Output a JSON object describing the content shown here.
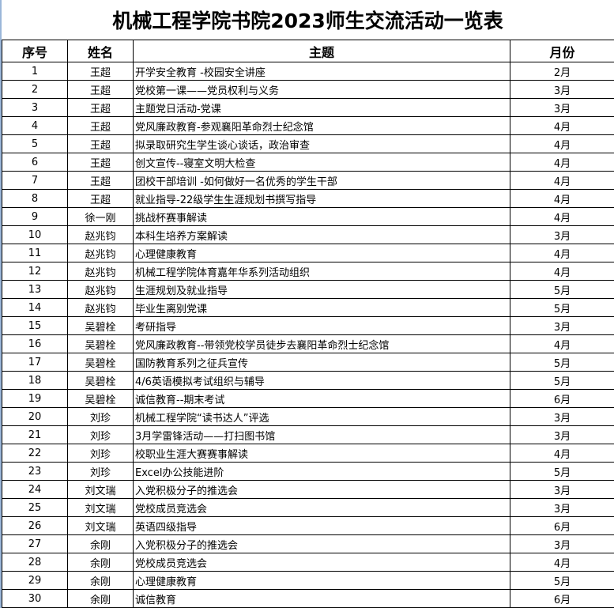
{
  "title": "机械工程学院书院2023师生交流活动一览表",
  "headers": [
    "序号",
    "姓名",
    "主题",
    "月份"
  ],
  "rows": [
    [
      "1",
      "王超",
      "开学安全教育 -校园安全讲座",
      "2月"
    ],
    [
      "2",
      "王超",
      "党校第一课——党员权利与义务",
      "3月"
    ],
    [
      "3",
      "王超",
      "主题党日活动-党课",
      "3月"
    ],
    [
      "4",
      "王超",
      "党风廉政教育-参观襄阳革命烈士纪念馆",
      "4月"
    ],
    [
      "5",
      "王超",
      "拟录取研究生学生谈心谈话，政治审查",
      "4月"
    ],
    [
      "6",
      "王超",
      "创文宣传--寝室文明大检查",
      "4月"
    ],
    [
      "7",
      "王超",
      "团校干部培训 -如何做好一名优秀的学生干部",
      "4月"
    ],
    [
      "8",
      "王超",
      "就业指导-22级学生生涯规划书撰写指导",
      "4月"
    ],
    [
      "9",
      "徐一刚",
      "挑战杯赛事解读",
      "4月"
    ],
    [
      "10",
      "赵兆钧",
      "本科生培养方案解读",
      "3月"
    ],
    [
      "11",
      "赵兆钧",
      "心理健康教育",
      "4月"
    ],
    [
      "12",
      "赵兆钧",
      "机械工程学院体育嘉年华系列活动组织",
      "4月"
    ],
    [
      "13",
      "赵兆钧",
      "生涯规划及就业指导",
      "5月"
    ],
    [
      "14",
      "赵兆钧",
      "毕业生离别党课",
      "5月"
    ],
    [
      "15",
      "吴碧栓",
      "考研指导",
      "3月"
    ],
    [
      "16",
      "吴碧栓",
      "党风廉政教育--带领党校学员徒步去襄阳革命烈士纪念馆",
      "4月"
    ],
    [
      "17",
      "吴碧栓",
      "国防教育系列之征兵宣传",
      "5月"
    ],
    [
      "18",
      "吴碧栓",
      "4/6英语模拟考试组织与辅导",
      "5月"
    ],
    [
      "19",
      "吴碧栓",
      "诚信教育--期末考试",
      "6月"
    ],
    [
      "20",
      "刘珍",
      "机械工程学院“读书达人”评选",
      "3月"
    ],
    [
      "21",
      "刘珍",
      "3月学雷锋活动——打扫图书馆",
      "3月"
    ],
    [
      "22",
      "刘珍",
      "校职业生涯大赛赛事解读",
      "4月"
    ],
    [
      "23",
      "刘珍",
      "Excel办公技能进阶",
      "5月"
    ],
    [
      "24",
      "刘文瑞",
      "入党积极分子的推选会",
      "3月"
    ],
    [
      "25",
      "刘文瑞",
      "党校成员竞选会",
      "3月"
    ],
    [
      "26",
      "刘文瑞",
      "英语四级指导",
      "6月"
    ],
    [
      "27",
      "余刚",
      "入党积极分子的推选会",
      "3月"
    ],
    [
      "28",
      "余刚",
      "党校成员竞选会",
      "4月"
    ],
    [
      "29",
      "余刚",
      "心理健康教育",
      "5月"
    ],
    [
      "30",
      "余刚",
      "诚信教育",
      "6月"
    ]
  ]
}
